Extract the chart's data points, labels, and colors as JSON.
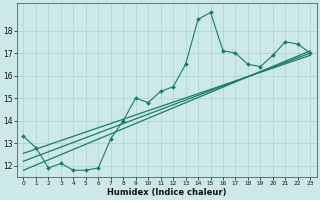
{
  "xlabel": "Humidex (Indice chaleur)",
  "x_data": [
    0,
    1,
    2,
    3,
    4,
    5,
    6,
    7,
    8,
    9,
    10,
    11,
    12,
    13,
    14,
    15,
    16,
    17,
    18,
    19,
    20,
    21,
    22,
    23
  ],
  "y_main": [
    13.3,
    12.8,
    11.9,
    12.1,
    11.8,
    11.8,
    11.9,
    13.2,
    14.0,
    15.0,
    14.8,
    15.3,
    15.5,
    16.5,
    18.5,
    18.8,
    17.1,
    17.0,
    16.5,
    16.4,
    16.9,
    17.5,
    17.4,
    17.0
  ],
  "reg_line1": [
    11.8,
    17.1
  ],
  "reg_line2": [
    12.2,
    17.0
  ],
  "reg_line3": [
    12.55,
    16.9
  ],
  "bg_color": "#cce9e7",
  "grid_color": "#aad4d0",
  "line_color": "#1a7a6e",
  "ylim": [
    11.5,
    19.2
  ],
  "xlim": [
    -0.5,
    23.5
  ],
  "yticks": [
    12,
    13,
    14,
    15,
    16,
    17,
    18
  ],
  "xticks": [
    0,
    1,
    2,
    3,
    4,
    5,
    6,
    7,
    8,
    9,
    10,
    11,
    12,
    13,
    14,
    15,
    16,
    17,
    18,
    19,
    20,
    21,
    22,
    23
  ]
}
